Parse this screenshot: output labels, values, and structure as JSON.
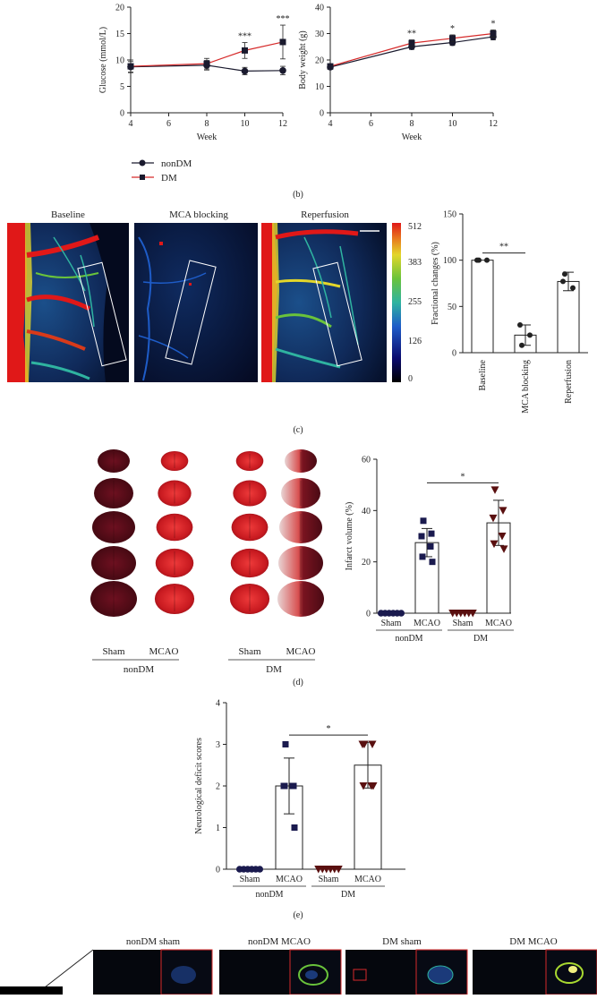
{
  "panel_b": {
    "label": "(b)",
    "legend": [
      {
        "name": "nonDM",
        "color": "#1a1a2e"
      },
      {
        "name": "DM",
        "color": "#d62a2a"
      }
    ]
  },
  "panel_c": {
    "label": "(c)",
    "image_titles": [
      "Baseline",
      "MCA blocking",
      "Reperfusion"
    ],
    "colorbar_ticks": [
      "512",
      "383",
      "255",
      "126",
      "0"
    ]
  },
  "panel_d": {
    "label": "(d)",
    "slice_groups": [
      "Sham",
      "MCAO",
      "Sham",
      "MCAO"
    ],
    "group_titles": [
      "nonDM",
      "DM"
    ]
  },
  "panel_e": {
    "label": "(e)"
  },
  "panel_f": {
    "titles": [
      "nonDM sham",
      "nonDM MCAO",
      "DM sham",
      "DM MCAO"
    ]
  },
  "chart_data": [
    {
      "type": "line",
      "xlabel": "Week",
      "ylabel": "Glucose (mmol/L)",
      "x": [
        4,
        8,
        10,
        12
      ],
      "xlim": [
        4,
        12
      ],
      "xticks": [
        4,
        6,
        8,
        10,
        12
      ],
      "ylim": [
        0,
        20
      ],
      "yticks": [
        0,
        5,
        10,
        15,
        20
      ],
      "series": [
        {
          "name": "nonDM",
          "values": [
            8.7,
            9.0,
            7.9,
            8.0
          ],
          "err": [
            1.0,
            0.9,
            0.7,
            0.8
          ],
          "color": "#1a1a2e"
        },
        {
          "name": "DM",
          "values": [
            8.8,
            9.3,
            11.8,
            13.4
          ],
          "err": [
            1.2,
            1.0,
            1.5,
            3.2
          ],
          "color": "#d62a2a"
        }
      ],
      "annotations": [
        {
          "x": 10,
          "text": "***"
        },
        {
          "x": 12,
          "text": "***"
        }
      ]
    },
    {
      "type": "line",
      "xlabel": "Week",
      "ylabel": "Body weight (g)",
      "x": [
        4,
        8,
        10,
        12
      ],
      "xlim": [
        4,
        12
      ],
      "xticks": [
        4,
        6,
        8,
        10,
        12
      ],
      "ylim": [
        0,
        40
      ],
      "yticks": [
        0,
        10,
        20,
        30,
        40
      ],
      "series": [
        {
          "name": "nonDM",
          "values": [
            17.3,
            25.0,
            26.6,
            28.8
          ],
          "err": [
            0.8,
            1.0,
            1.1,
            1.2
          ],
          "color": "#1a1a2e"
        },
        {
          "name": "DM",
          "values": [
            17.6,
            26.4,
            28.2,
            30.0
          ],
          "err": [
            0.8,
            1.2,
            1.3,
            1.4
          ],
          "color": "#d62a2a"
        }
      ],
      "annotations": [
        {
          "x": 8,
          "text": "**"
        },
        {
          "x": 10,
          "text": "*"
        },
        {
          "x": 12,
          "text": "*"
        }
      ]
    },
    {
      "type": "bar",
      "ylabel": "Fractional changes (%)",
      "categories": [
        "Baseline",
        "MCA blocking",
        "Reperfusion"
      ],
      "values": [
        100,
        19,
        77
      ],
      "err": [
        0,
        11,
        10
      ],
      "points": [
        [
          100,
          100,
          100
        ],
        [
          8,
          19,
          30
        ],
        [
          85,
          70,
          77
        ]
      ],
      "ylim": [
        0,
        150
      ],
      "yticks": [
        0,
        50,
        100,
        150
      ],
      "annotations": [
        {
          "from": 0,
          "to": 1,
          "text": "**"
        }
      ]
    },
    {
      "type": "bar",
      "ylabel": "Infarct volume (%)",
      "categories": [
        "Sham",
        "MCAO",
        "Sham",
        "MCAO"
      ],
      "group_labels": [
        "nonDM",
        "DM"
      ],
      "values": [
        0,
        27.5,
        0,
        35.2
      ],
      "err": [
        0,
        5.5,
        0,
        8.8
      ],
      "points": [
        [
          0,
          0,
          0,
          0,
          0,
          0
        ],
        [
          36,
          31,
          30,
          26,
          22,
          20
        ],
        [
          0,
          0,
          0,
          0,
          0,
          0
        ],
        [
          48,
          40,
          37,
          30,
          27,
          25
        ]
      ],
      "ylim": [
        0,
        60
      ],
      "yticks": [
        0,
        20,
        40,
        60
      ],
      "annotations": [
        {
          "from": 1,
          "to": 3,
          "text": "*"
        }
      ]
    },
    {
      "type": "bar",
      "ylabel": "Neurological deficit scores",
      "categories": [
        "Sham",
        "MCAO",
        "Sham",
        "MCAO"
      ],
      "group_labels": [
        "nonDM",
        "DM"
      ],
      "values": [
        0,
        2.0,
        0,
        2.5
      ],
      "err": [
        0,
        0.67,
        0,
        0.55
      ],
      "points": [
        [
          0,
          0,
          0,
          0,
          0,
          0
        ],
        [
          3,
          2,
          2,
          2,
          2,
          1
        ],
        [
          0,
          0,
          0,
          0,
          0,
          0
        ],
        [
          3,
          3,
          3,
          2,
          2,
          2
        ]
      ],
      "ylim": [
        0,
        4
      ],
      "yticks": [
        0,
        1,
        2,
        3,
        4
      ],
      "annotations": [
        {
          "from": 1,
          "to": 3,
          "text": "*"
        }
      ]
    }
  ]
}
